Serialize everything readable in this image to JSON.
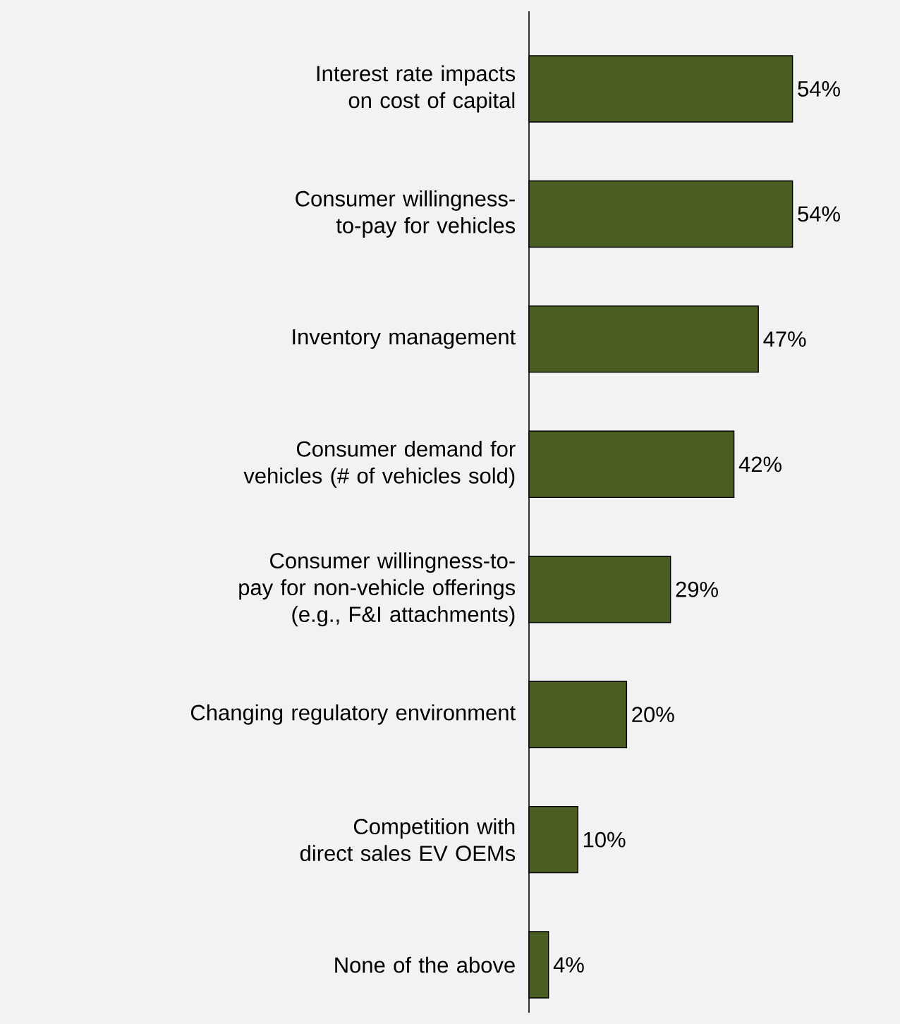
{
  "chart_data": {
    "type": "bar",
    "orientation": "horizontal",
    "categories": [
      "Interest rate impacts on cost of capital",
      "Consumer willingness-to-pay for vehicles",
      "Inventory management",
      "Consumer demand for vehicles (# of vehicles sold)",
      "Consumer willingness-to-pay for non-vehicle offerings (e.g., F&I attachments)",
      "Changing regulatory environment",
      "Competition with direct sales EV OEMs",
      "None of the above"
    ],
    "values": [
      54,
      54,
      47,
      42,
      29,
      20,
      10,
      4
    ],
    "value_labels": [
      "54%",
      "54%",
      "47%",
      "42%",
      "29%",
      "20%",
      "10%",
      "4%"
    ],
    "color": "#4a5e23"
  }
}
